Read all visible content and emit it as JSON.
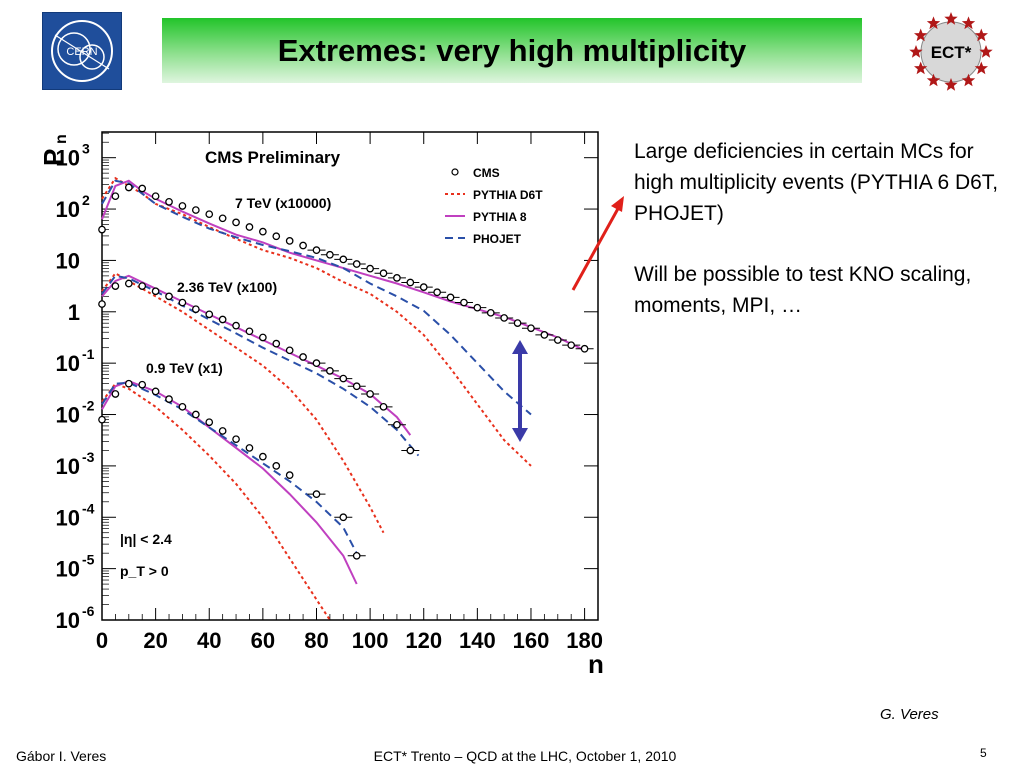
{
  "slide": {
    "title": "Extremes: very high multiplicity",
    "bullets": [
      "Large deficiencies in certain MCs for high multiplicity events (PYTHIA 6 D6T, PHOJET)",
      "Will be possible to test KNO scaling, moments, MPI, …"
    ],
    "author_credit": "G. Veres",
    "footer_left": "Gábor I. Veres",
    "footer_center": "ECT* Trento – QCD at the LHC, October 1, 2010",
    "page_number": "5",
    "logos": {
      "left": "CERN",
      "right": "ECT*"
    }
  },
  "colors": {
    "title_bar_green": "#22c42a",
    "cms_points": "#000000",
    "pythia_d6t": "#e8301c",
    "pythia_8": "#c040c0",
    "phojet": "#2a4fa8",
    "arrow_red": "#e0201a",
    "arrow_blue": "#3a3aa8"
  },
  "chart_data": {
    "type": "line",
    "title": "CMS Preliminary",
    "xlabel": "n",
    "ylabel": "P_n",
    "xlim": [
      0,
      185
    ],
    "ylim_log10": [
      -6,
      3.5
    ],
    "log_y": true,
    "x_ticks": [
      "0",
      "20",
      "40",
      "60",
      "80",
      "100",
      "120",
      "140",
      "160",
      "180"
    ],
    "y_ticks": [
      {
        "log": 3,
        "label": "10",
        "exp": "3"
      },
      {
        "log": 2,
        "label": "10",
        "exp": "2"
      },
      {
        "log": 1,
        "label": "10",
        "exp": ""
      },
      {
        "log": 0,
        "label": "1",
        "exp": ""
      },
      {
        "log": -1,
        "label": "10",
        "exp": "-1"
      },
      {
        "log": -2,
        "label": "10",
        "exp": "-2"
      },
      {
        "log": -3,
        "label": "10",
        "exp": "-3"
      },
      {
        "log": -4,
        "label": "10",
        "exp": "-4"
      },
      {
        "log": -5,
        "label": "10",
        "exp": "-5"
      },
      {
        "log": -6,
        "label": "10",
        "exp": "-6"
      }
    ],
    "legend": {
      "placement": "top-right",
      "entries": [
        {
          "name": "CMS",
          "style": "marker"
        },
        {
          "name": "PYTHIA D6T",
          "style": "dotted",
          "color": "#e8301c"
        },
        {
          "name": "PYTHIA 8",
          "style": "solid",
          "color": "#c040c0"
        },
        {
          "name": "PHOJET",
          "style": "dashed",
          "color": "#2a4fa8"
        }
      ]
    },
    "annotations": [
      "7 TeV (x10000)",
      "2.36 TeV (x100)",
      "0.9 TeV (x1)",
      "|η| < 2.4",
      "p_T > 0"
    ],
    "groups": [
      {
        "label": "7 TeV (x10000)",
        "series": [
          {
            "name": "CMS",
            "kind": "points",
            "x": [
              0,
              5,
              10,
              15,
              20,
              25,
              30,
              35,
              40,
              45,
              50,
              55,
              60,
              65,
              70,
              75,
              80,
              85,
              90,
              95,
              100,
              105,
              110,
              115,
              120,
              125,
              130,
              135,
              140,
              145,
              150,
              155,
              160,
              165,
              170,
              175,
              180
            ],
            "y": [
              1.6,
              2.25,
              2.42,
              2.4,
              2.25,
              2.14,
              2.06,
              1.98,
              1.9,
              1.82,
              1.74,
              1.65,
              1.56,
              1.47,
              1.38,
              1.29,
              1.2,
              1.11,
              1.02,
              0.93,
              0.84,
              0.75,
              0.66,
              0.57,
              0.48,
              0.38,
              0.28,
              0.18,
              0.08,
              -0.02,
              -0.12,
              -0.22,
              -0.32,
              -0.45,
              -0.55,
              -0.65,
              -0.72
            ]
          },
          {
            "name": "PYTHIA D6T",
            "kind": "line",
            "x": [
              0,
              5,
              10,
              15,
              20,
              30,
              40,
              50,
              60,
              70,
              80,
              90,
              100,
              110,
              120,
              130,
              140,
              150,
              160
            ],
            "y": [
              2.2,
              2.6,
              2.45,
              2.3,
              2.1,
              1.9,
              1.65,
              1.42,
              1.2,
              1.05,
              0.85,
              0.58,
              0.35,
              0.0,
              -0.45,
              -1.1,
              -1.8,
              -2.5,
              -3.0
            ]
          },
          {
            "name": "PYTHIA 8",
            "kind": "line",
            "x": [
              0,
              5,
              10,
              15,
              20,
              30,
              40,
              50,
              60,
              70,
              80,
              90,
              100,
              110,
              120,
              130,
              140,
              150,
              160,
              170,
              180
            ],
            "y": [
              1.8,
              2.45,
              2.55,
              2.35,
              2.2,
              1.95,
              1.72,
              1.5,
              1.35,
              1.15,
              1.0,
              0.85,
              0.7,
              0.55,
              0.38,
              0.2,
              0.05,
              -0.1,
              -0.3,
              -0.5,
              -0.75
            ]
          },
          {
            "name": "PHOJET",
            "kind": "line",
            "x": [
              0,
              5,
              10,
              15,
              20,
              30,
              40,
              50,
              60,
              70,
              80,
              90,
              100,
              110,
              120,
              130,
              140,
              150,
              160
            ],
            "y": [
              2.1,
              2.55,
              2.5,
              2.3,
              2.1,
              1.85,
              1.62,
              1.45,
              1.3,
              1.18,
              1.05,
              0.85,
              0.55,
              0.3,
              0.02,
              -0.45,
              -1.0,
              -1.55,
              -2.0
            ]
          }
        ]
      },
      {
        "label": "2.36 TeV (x100)",
        "series": [
          {
            "name": "CMS",
            "kind": "points",
            "x": [
              0,
              5,
              10,
              15,
              20,
              25,
              30,
              35,
              40,
              45,
              50,
              55,
              60,
              65,
              70,
              75,
              80,
              85,
              90,
              95,
              100,
              105,
              110,
              115
            ],
            "y": [
              0.15,
              0.5,
              0.55,
              0.5,
              0.4,
              0.3,
              0.18,
              0.05,
              -0.05,
              -0.15,
              -0.27,
              -0.38,
              -0.5,
              -0.62,
              -0.75,
              -0.88,
              -1.0,
              -1.15,
              -1.3,
              -1.45,
              -1.6,
              -1.85,
              -2.2,
              -2.7
            ]
          },
          {
            "name": "PYTHIA D6T",
            "kind": "line",
            "x": [
              0,
              5,
              10,
              20,
              30,
              40,
              50,
              60,
              70,
              80,
              90,
              100,
              105
            ],
            "y": [
              0.4,
              0.75,
              0.6,
              0.3,
              0.0,
              -0.35,
              -0.7,
              -1.05,
              -1.5,
              -2.1,
              -2.9,
              -3.8,
              -4.3
            ]
          },
          {
            "name": "PYTHIA 8",
            "kind": "line",
            "x": [
              0,
              5,
              10,
              20,
              30,
              40,
              50,
              60,
              70,
              80,
              90,
              100,
              110,
              115
            ],
            "y": [
              0.3,
              0.6,
              0.7,
              0.45,
              0.2,
              -0.05,
              -0.3,
              -0.55,
              -0.8,
              -1.05,
              -1.3,
              -1.6,
              -2.05,
              -2.4
            ]
          },
          {
            "name": "PHOJET",
            "kind": "line",
            "x": [
              0,
              5,
              10,
              20,
              30,
              40,
              50,
              60,
              70,
              80,
              90,
              100,
              110,
              118
            ],
            "y": [
              0.35,
              0.7,
              0.65,
              0.4,
              0.12,
              -0.15,
              -0.42,
              -0.7,
              -0.95,
              -1.2,
              -1.5,
              -1.85,
              -2.3,
              -2.8
            ]
          }
        ]
      },
      {
        "label": "0.9 TeV (x1)",
        "series": [
          {
            "name": "CMS",
            "kind": "points",
            "x": [
              0,
              5,
              10,
              15,
              20,
              25,
              30,
              35,
              40,
              45,
              50,
              55,
              60,
              65,
              70,
              80,
              90,
              95
            ],
            "y": [
              -2.1,
              -1.6,
              -1.4,
              -1.42,
              -1.55,
              -1.7,
              -1.85,
              -2.0,
              -2.15,
              -2.32,
              -2.48,
              -2.65,
              -2.82,
              -3.0,
              -3.18,
              -3.55,
              -4.0,
              -4.75
            ]
          },
          {
            "name": "PYTHIA D6T",
            "kind": "line",
            "x": [
              0,
              5,
              10,
              20,
              30,
              40,
              50,
              60,
              70,
              80,
              85
            ],
            "y": [
              -1.75,
              -1.4,
              -1.5,
              -1.85,
              -2.3,
              -2.8,
              -3.35,
              -4.0,
              -4.8,
              -5.6,
              -6.0
            ]
          },
          {
            "name": "PYTHIA 8",
            "kind": "line",
            "x": [
              0,
              5,
              10,
              20,
              30,
              40,
              50,
              60,
              70,
              80,
              90,
              95
            ],
            "y": [
              -1.9,
              -1.45,
              -1.35,
              -1.55,
              -1.85,
              -2.25,
              -2.65,
              -3.05,
              -3.55,
              -4.1,
              -4.75,
              -5.3
            ]
          },
          {
            "name": "PHOJET",
            "kind": "line",
            "x": [
              0,
              5,
              10,
              20,
              30,
              40,
              50,
              60,
              70,
              80,
              90,
              95
            ],
            "y": [
              -1.8,
              -1.4,
              -1.38,
              -1.62,
              -1.9,
              -2.25,
              -2.6,
              -2.95,
              -3.3,
              -3.7,
              -4.2,
              -4.7
            ]
          }
        ]
      }
    ]
  }
}
